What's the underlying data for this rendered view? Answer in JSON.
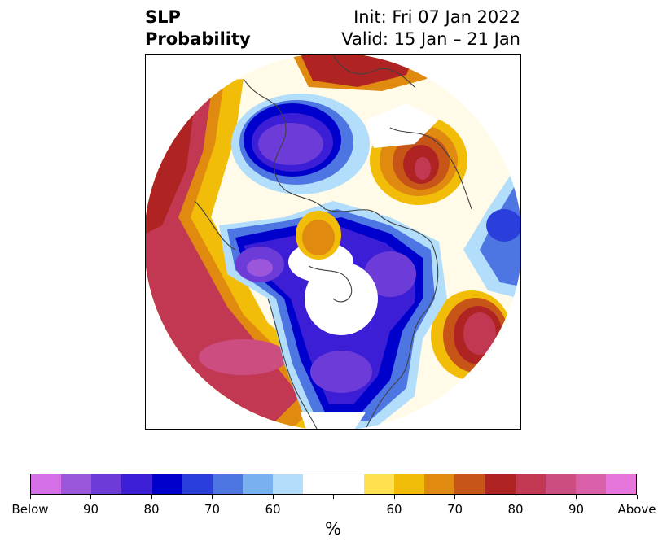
{
  "title": {
    "left_line1": "SLP",
    "left_line2": "Probability",
    "right_line1": "Init: Fri 07 Jan 2022",
    "right_line2": "Valid: 15 Jan – 21 Jan"
  },
  "colorbar": {
    "colors": [
      "#d570e6",
      "#9b56dc",
      "#6c3bd8",
      "#3c1ed6",
      "#0000cd",
      "#2a3edb",
      "#4e76e3",
      "#79b1f0",
      "#b2defb",
      "#ffffff",
      "#ffffff",
      "#ffe14f",
      "#f1bd08",
      "#e08a10",
      "#c85518",
      "#b02323",
      "#c23853",
      "#cc4d80",
      "#d960a8",
      "#e676dc"
    ],
    "tick_labels": [
      "Below",
      "90",
      "80",
      "70",
      "60",
      "",
      "60",
      "70",
      "80",
      "90",
      "Above"
    ],
    "unit": "%"
  },
  "map": {
    "projection": "north-polar-stereographic",
    "blue_categories": "below normal",
    "red_categories": "above normal"
  }
}
